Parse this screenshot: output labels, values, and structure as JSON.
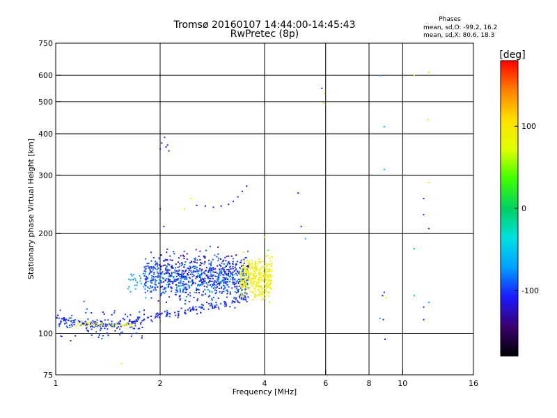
{
  "header": {
    "title": "Tromsø 20160107 14:44:00-14:45:43",
    "subtitle": "RwPretec (8p)",
    "phases_label": "Phases",
    "phases_o": "mean, sd,O: -99.2, 16.2",
    "phases_x": "mean, sd,X:  80.6, 18.3"
  },
  "colorbar": {
    "label": "[deg]",
    "ticks": [
      {
        "value": 100,
        "label": "100"
      },
      {
        "value": 0,
        "label": "0"
      },
      {
        "value": -100,
        "label": "-100"
      }
    ],
    "range": [
      -180,
      180
    ],
    "colors": [
      "#000000",
      "#3a0070",
      "#1a1aff",
      "#00a0ff",
      "#00e0e0",
      "#00d060",
      "#40ff00",
      "#e0ff00",
      "#ffe000",
      "#ff8000",
      "#ff0000"
    ]
  },
  "chart_data": {
    "type": "scatter",
    "title": "Tromsø 20160107 14:44:00-14:45:43",
    "subtitle": "RwPretec (8p)",
    "xlabel": "Frequency [MHz]",
    "ylabel": "Stationary phase Virtual Height [km]",
    "xscale": "log",
    "yscale": "log",
    "xlim": [
      1,
      16
    ],
    "ylim": [
      75,
      750
    ],
    "xticks": [
      1,
      2,
      4,
      6,
      8,
      10,
      16
    ],
    "yticks": [
      75,
      100,
      200,
      300,
      400,
      500,
      600,
      750
    ],
    "grid_x": [
      2,
      4,
      6,
      8,
      10
    ],
    "grid_y": [
      100,
      200,
      300,
      400,
      500,
      600
    ],
    "colorbar_label": "[deg]",
    "color_range": [
      -180,
      180
    ],
    "clusters": [
      {
        "name": "O-mode base trace (blue)",
        "phase": -105,
        "count": 240,
        "x_range": [
          1.0,
          3.6
        ],
        "curve": [
          [
            1.0,
            110
          ],
          [
            1.2,
            107
          ],
          [
            1.5,
            106
          ],
          [
            1.8,
            110
          ],
          [
            2.0,
            113
          ],
          [
            2.5,
            118
          ],
          [
            3.0,
            122
          ],
          [
            3.5,
            128
          ]
        ],
        "spread": 0.03
      },
      {
        "name": "O-mode spread (blue)",
        "phase": -100,
        "count": 650,
        "x_range": [
          1.8,
          3.6
        ],
        "y_range": [
          115,
          190
        ]
      },
      {
        "name": "O-mode diffuse (blue/cyan)",
        "phase": -70,
        "count": 150,
        "x_range": [
          1.6,
          3.6
        ],
        "y_range": [
          120,
          175
        ]
      },
      {
        "name": "Low-frequency echoes",
        "phase": -100,
        "count": 90,
        "x_range": [
          1.0,
          1.8
        ],
        "y_range": [
          88,
          130
        ]
      },
      {
        "name": "X-mode cluster (yellow)",
        "phase": 90,
        "count": 320,
        "x_range": [
          3.4,
          4.2
        ],
        "y_range": [
          118,
          185
        ]
      },
      {
        "name": "X-mode low trace (yellow)",
        "phase": 85,
        "count": 40,
        "x_range": [
          1.1,
          1.7
        ],
        "y_range": [
          103,
          110
        ]
      },
      {
        "name": "Purple core",
        "phase": -140,
        "count": 90,
        "x_range": [
          2.0,
          3.6
        ],
        "y_range": [
          118,
          200
        ]
      }
    ],
    "points": [
      {
        "x": 2.0,
        "y": 360,
        "phase": -105
      },
      {
        "x": 2.02,
        "y": 375,
        "phase": -105
      },
      {
        "x": 2.06,
        "y": 390,
        "phase": -100
      },
      {
        "x": 2.08,
        "y": 365,
        "phase": -110
      },
      {
        "x": 2.1,
        "y": 370,
        "phase": -100
      },
      {
        "x": 2.12,
        "y": 355,
        "phase": -105
      },
      {
        "x": 2.0,
        "y": 237,
        "phase": -110
      },
      {
        "x": 2.05,
        "y": 210,
        "phase": -105
      },
      {
        "x": 2.35,
        "y": 237,
        "phase": 85
      },
      {
        "x": 2.45,
        "y": 255,
        "phase": 90
      },
      {
        "x": 2.55,
        "y": 243,
        "phase": -110
      },
      {
        "x": 2.7,
        "y": 242,
        "phase": -110
      },
      {
        "x": 2.85,
        "y": 240,
        "phase": -110
      },
      {
        "x": 3.0,
        "y": 242,
        "phase": -110
      },
      {
        "x": 3.15,
        "y": 245,
        "phase": -105
      },
      {
        "x": 3.25,
        "y": 250,
        "phase": -105
      },
      {
        "x": 3.35,
        "y": 258,
        "phase": -110
      },
      {
        "x": 3.45,
        "y": 268,
        "phase": -105
      },
      {
        "x": 3.55,
        "y": 278,
        "phase": -110
      },
      {
        "x": 5.0,
        "y": 265,
        "phase": -110
      },
      {
        "x": 5.1,
        "y": 210,
        "phase": -110
      },
      {
        "x": 5.25,
        "y": 193,
        "phase": -60
      },
      {
        "x": 5.85,
        "y": 548,
        "phase": -100
      },
      {
        "x": 5.9,
        "y": 495,
        "phase": 85
      },
      {
        "x": 5.95,
        "y": 530,
        "phase": 90
      },
      {
        "x": 8.6,
        "y": 598,
        "phase": -60
      },
      {
        "x": 8.85,
        "y": 420,
        "phase": -50
      },
      {
        "x": 8.85,
        "y": 312,
        "phase": -50
      },
      {
        "x": 8.75,
        "y": 130,
        "phase": -110
      },
      {
        "x": 8.85,
        "y": 133,
        "phase": -100
      },
      {
        "x": 8.95,
        "y": 128,
        "phase": 85
      },
      {
        "x": 8.6,
        "y": 111,
        "phase": -60
      },
      {
        "x": 8.8,
        "y": 110,
        "phase": -105
      },
      {
        "x": 8.9,
        "y": 96,
        "phase": -110
      },
      {
        "x": 10.8,
        "y": 600,
        "phase": 85
      },
      {
        "x": 11.9,
        "y": 612,
        "phase": 110
      },
      {
        "x": 11.8,
        "y": 440,
        "phase": 100
      },
      {
        "x": 11.9,
        "y": 285,
        "phase": 90
      },
      {
        "x": 11.5,
        "y": 255,
        "phase": -110
      },
      {
        "x": 11.5,
        "y": 228,
        "phase": -110
      },
      {
        "x": 11.9,
        "y": 207,
        "phase": -110
      },
      {
        "x": 10.8,
        "y": 180,
        "phase": -40
      },
      {
        "x": 10.8,
        "y": 130,
        "phase": -50
      },
      {
        "x": 11.9,
        "y": 124,
        "phase": -50
      },
      {
        "x": 11.5,
        "y": 120,
        "phase": -110
      },
      {
        "x": 11.5,
        "y": 110,
        "phase": -110
      },
      {
        "x": 1.55,
        "y": 81,
        "phase": 90
      },
      {
        "x": 4.0,
        "y": 195,
        "phase": 80
      },
      {
        "x": 4.1,
        "y": 178,
        "phase": 40
      },
      {
        "x": 4.2,
        "y": 170,
        "phase": 100
      }
    ]
  }
}
